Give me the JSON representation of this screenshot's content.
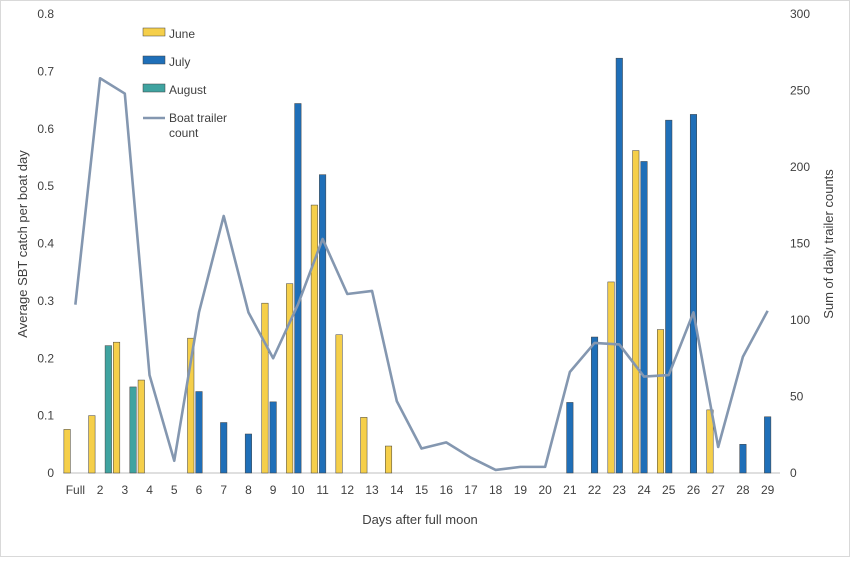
{
  "chart_data": {
    "type": "bar",
    "categories": [
      "Full",
      "2",
      "3",
      "4",
      "5",
      "6",
      "7",
      "8",
      "9",
      "10",
      "11",
      "12",
      "13",
      "14",
      "15",
      "16",
      "17",
      "18",
      "19",
      "20",
      "21",
      "22",
      "23",
      "24",
      "25",
      "26",
      "27",
      "28",
      "29"
    ],
    "series": [
      {
        "name": "June",
        "kind": "bar",
        "axis": "left",
        "color": "#F5CF4A",
        "values": [
          0.076,
          0.1,
          0.228,
          0.162,
          null,
          0.235,
          null,
          null,
          0.296,
          0.33,
          0.467,
          0.241,
          0.097,
          0.047,
          null,
          null,
          null,
          null,
          null,
          null,
          null,
          null,
          0.333,
          0.562,
          0.25,
          null,
          0.11,
          null,
          null
        ]
      },
      {
        "name": "July",
        "kind": "bar",
        "axis": "left",
        "color": "#1F6FB8",
        "values": [
          null,
          null,
          null,
          null,
          null,
          0.142,
          0.088,
          0.068,
          0.124,
          0.644,
          0.52,
          null,
          null,
          null,
          null,
          null,
          null,
          null,
          null,
          null,
          0.123,
          0.237,
          0.723,
          0.543,
          0.615,
          0.625,
          null,
          0.05,
          0.098
        ]
      },
      {
        "name": "August",
        "kind": "bar",
        "axis": "left",
        "color": "#3FA3A0",
        "values": [
          null,
          0.222,
          0.15,
          null,
          null,
          null,
          null,
          null,
          null,
          null,
          null,
          null,
          null,
          null,
          null,
          null,
          null,
          null,
          null,
          null,
          null,
          null,
          null,
          null,
          null,
          null,
          null,
          null,
          null
        ]
      },
      {
        "name": "Boat trailer count",
        "kind": "line",
        "axis": "right",
        "color": "#8497B0",
        "values": [
          110,
          258,
          248,
          64,
          8,
          105,
          168,
          105,
          75,
          110,
          153,
          117,
          119,
          47,
          16,
          20,
          10,
          2,
          4,
          4,
          66,
          85,
          84,
          63,
          64,
          105,
          17,
          76,
          106
        ]
      }
    ],
    "xlabel": "Days after full moon",
    "ylabel": "Average SBT catch per boat day",
    "y2label": "Sum of daily trailer counts",
    "ylim": [
      0,
      0.8
    ],
    "y2lim": [
      0,
      300
    ],
    "yticks": [
      "0",
      "0.1",
      "0.2",
      "0.3",
      "0.4",
      "0.5",
      "0.6",
      "0.7",
      "0.8"
    ],
    "y2ticks": [
      "0",
      "50",
      "100",
      "150",
      "200",
      "250",
      "300"
    ],
    "grid": false,
    "legend": {
      "position": "top-left",
      "entries": [
        "June",
        "July",
        "August",
        "Boat trailer count"
      ]
    }
  }
}
